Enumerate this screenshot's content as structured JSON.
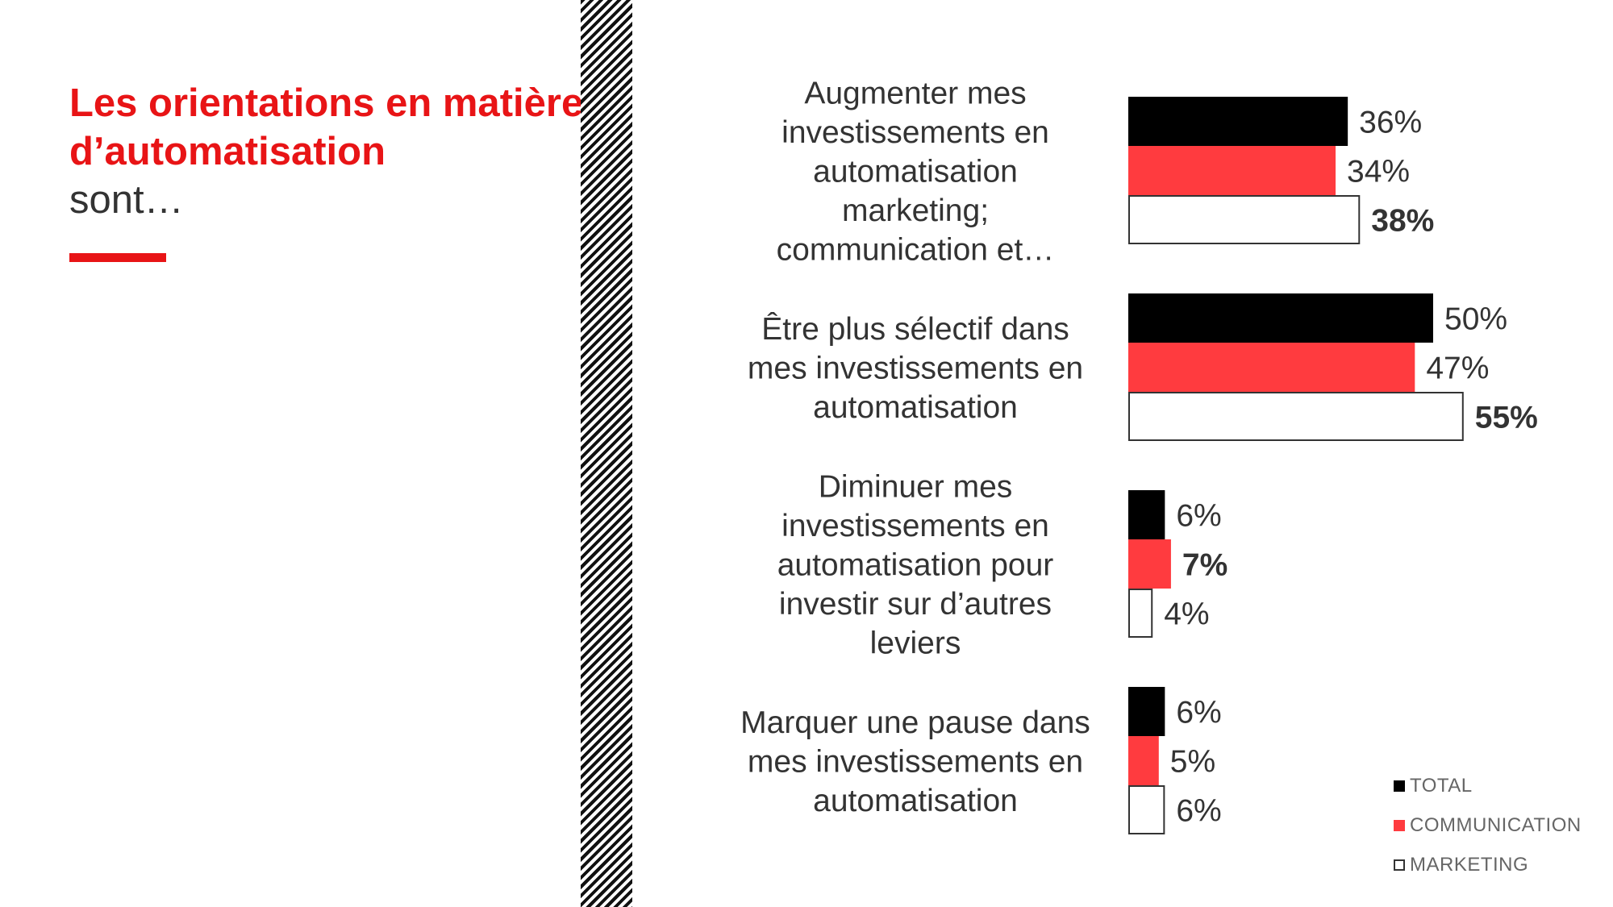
{
  "title": {
    "highlight": "Les orientations en matière d’automatisation",
    "rest": "sont…"
  },
  "colors": {
    "accent": "#e81416",
    "total": "#000000",
    "communication": "#ff3b3f",
    "marketing": "#ffffff"
  },
  "chart_data": {
    "type": "bar",
    "orientation": "horizontal",
    "categories": [
      [
        "Augmenter mes",
        "investissements en",
        "automatisation",
        "marketing;",
        "communication et…"
      ],
      [
        "Être plus sélectif dans",
        "mes investissements en",
        "automatisation"
      ],
      [
        "Diminuer mes",
        "investissements en",
        "automatisation pour",
        "investir sur d’autres",
        "leviers"
      ],
      [
        "Marquer une pause dans",
        "mes investissements en",
        "automatisation"
      ]
    ],
    "series": [
      {
        "name": "TOTAL",
        "values": [
          36,
          50,
          6,
          6
        ]
      },
      {
        "name": "COMMUNICATION",
        "values": [
          34,
          47,
          7,
          5
        ]
      },
      {
        "name": "MARKETING",
        "values": [
          38,
          55,
          4,
          6
        ]
      }
    ],
    "value_labels": [
      [
        "36%",
        "34%",
        "38%"
      ],
      [
        "50%",
        "47%",
        "55%"
      ],
      [
        "6%",
        "7%",
        "4%"
      ],
      [
        "6%",
        "5%",
        "6%"
      ]
    ],
    "bold_labels": [
      [
        false,
        false,
        true
      ],
      [
        false,
        false,
        true
      ],
      [
        false,
        true,
        false
      ],
      [
        false,
        false,
        false
      ]
    ],
    "legend": {
      "position": "bottom-right"
    },
    "grid": false
  }
}
